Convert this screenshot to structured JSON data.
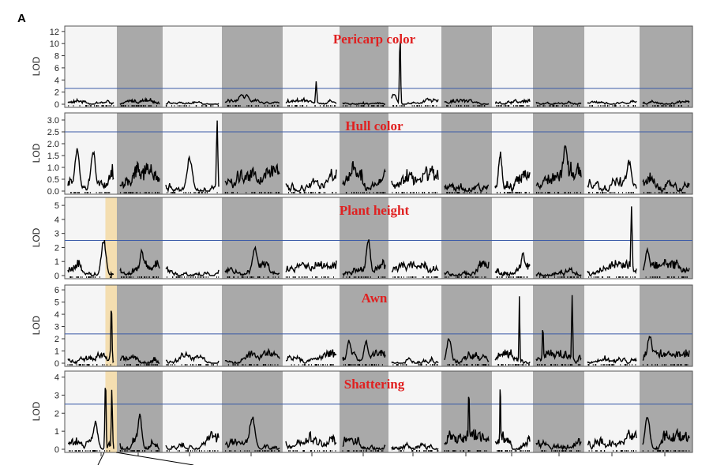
{
  "figure": {
    "panel_label": "A"
  },
  "colors": {
    "chrom_light": "#f5f5f5",
    "chrom_dark": "#a9a9a9",
    "threshold": "#3b5ba8",
    "highlight": "#f3d9a3",
    "trait_title": "#e02020",
    "lod_curve": "#000000"
  },
  "chart_data": [
    {
      "type": "line",
      "title": "Pericarp color",
      "ylabel": "LOD",
      "ylim": [
        0,
        12.5
      ],
      "yticks": [
        0,
        2,
        4,
        6,
        8,
        10,
        12
      ],
      "threshold": 2.6,
      "chromosomes": 12,
      "base": 0.3,
      "noise": 0.7,
      "peaks": [
        {
          "chr": 4,
          "pos": 0.6,
          "lod": 4.2
        },
        {
          "chr": 6,
          "pos": 0.18,
          "lod": 12.2
        },
        {
          "chr": 6,
          "pos": 0.05,
          "lod": 1.8
        },
        {
          "chr": 3,
          "pos": 0.3,
          "lod": 1.8
        },
        {
          "chr": 3,
          "pos": 0.4,
          "lod": 1.6
        }
      ]
    },
    {
      "type": "line",
      "title": "Hull color",
      "ylabel": "LOD",
      "ylim": [
        0,
        3.2
      ],
      "yticks": [
        0.0,
        0.5,
        1.0,
        1.5,
        2.0,
        2.5,
        3.0
      ],
      "threshold": 2.5,
      "chromosomes": 12,
      "base": 0.35,
      "noise": 0.9,
      "peaks": [
        {
          "chr": 0,
          "pos": 0.2,
          "lod": 1.9
        },
        {
          "chr": 0,
          "pos": 0.55,
          "lod": 1.8
        },
        {
          "chr": 2,
          "pos": 0.97,
          "lod": 3.15
        },
        {
          "chr": 2,
          "pos": 0.45,
          "lod": 1.5
        },
        {
          "chr": 9,
          "pos": 0.65,
          "lod": 2.05
        },
        {
          "chr": 10,
          "pos": 0.85,
          "lod": 1.35
        },
        {
          "chr": 8,
          "pos": 0.15,
          "lod": 1.7
        }
      ]
    },
    {
      "type": "line",
      "title": "Plant height",
      "ylabel": "LOD",
      "ylim": [
        0,
        5.4
      ],
      "yticks": [
        0,
        1,
        2,
        3,
        4,
        5
      ],
      "threshold": 2.5,
      "chromosomes": 12,
      "base": 0.3,
      "noise": 0.8,
      "peaks": [
        {
          "chr": 0,
          "pos": 0.78,
          "lod": 2.75
        },
        {
          "chr": 1,
          "pos": 0.55,
          "lod": 1.9
        },
        {
          "chr": 3,
          "pos": 0.55,
          "lod": 2.05
        },
        {
          "chr": 5,
          "pos": 0.6,
          "lod": 2.7
        },
        {
          "chr": 8,
          "pos": 0.8,
          "lod": 1.7
        },
        {
          "chr": 10,
          "pos": 0.9,
          "lod": 5.4
        },
        {
          "chr": 11,
          "pos": 0.1,
          "lod": 1.9
        }
      ]
    },
    {
      "type": "line",
      "title": "Awn",
      "ylabel": "LOD",
      "ylim": [
        0,
        6.2
      ],
      "yticks": [
        0,
        1,
        2,
        3,
        4,
        5,
        6
      ],
      "threshold": 2.4,
      "chromosomes": 12,
      "base": 0.3,
      "noise": 0.8,
      "peaks": [
        {
          "chr": 0,
          "pos": 0.95,
          "lod": 5.2
        },
        {
          "chr": 5,
          "pos": 0.15,
          "lod": 2.0
        },
        {
          "chr": 5,
          "pos": 0.55,
          "lod": 1.9
        },
        {
          "chr": 7,
          "pos": 0.1,
          "lod": 2.2
        },
        {
          "chr": 8,
          "pos": 0.7,
          "lod": 5.5
        },
        {
          "chr": 9,
          "pos": 0.15,
          "lod": 3.3
        },
        {
          "chr": 9,
          "pos": 0.8,
          "lod": 6.1
        },
        {
          "chr": 11,
          "pos": 0.15,
          "lod": 2.4
        }
      ]
    },
    {
      "type": "line",
      "title": "Shattering",
      "ylabel": "LOD",
      "ylim": [
        0,
        4.2
      ],
      "yticks": [
        0,
        1,
        2,
        3,
        4
      ],
      "threshold": 2.5,
      "chromosomes": 12,
      "base": 0.3,
      "noise": 0.8,
      "peaks": [
        {
          "chr": 0,
          "pos": 0.82,
          "lod": 4.1
        },
        {
          "chr": 0,
          "pos": 0.96,
          "lod": 3.5
        },
        {
          "chr": 0,
          "pos": 0.6,
          "lod": 1.6
        },
        {
          "chr": 1,
          "pos": 0.5,
          "lod": 2.1
        },
        {
          "chr": 3,
          "pos": 0.5,
          "lod": 1.9
        },
        {
          "chr": 7,
          "pos": 0.55,
          "lod": 3.4
        },
        {
          "chr": 8,
          "pos": 0.15,
          "lod": 3.95
        },
        {
          "chr": 11,
          "pos": 0.1,
          "lod": 2.0
        }
      ]
    }
  ],
  "highlight_region": {
    "chr": 0,
    "pos_from": 0.78,
    "pos_to": 1.0
  }
}
